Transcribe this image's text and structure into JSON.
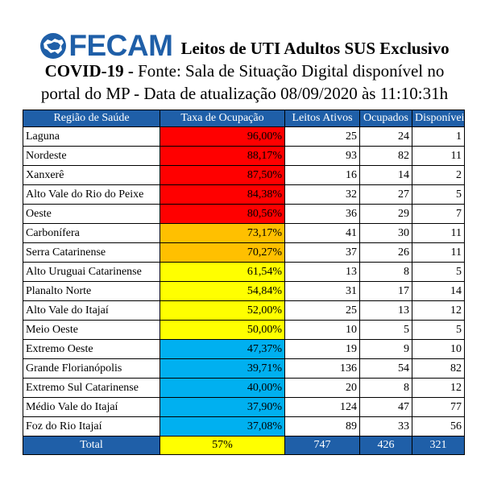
{
  "header": {
    "logo_text": "FECAM",
    "title_line1": "Leitos de UTI Adultos SUS Exclusivo",
    "title_line2_bold": "COVID-19 -",
    "title_line2_rest": " Fonte: Sala de Situação Digital disponível no",
    "title_line3": "portal do MP - Data de atualização 08/09/2020 às 11:10:31h"
  },
  "table": {
    "columns": [
      "Região de Saúde",
      "Taxa de Ocupação",
      "Leitos Ativos",
      "Ocupados",
      "Disponíveis"
    ],
    "rows": [
      {
        "regiao": "Laguna",
        "taxa": "96,00%",
        "ativos": "25",
        "ocupados": "24",
        "disponiveis": "1",
        "color": "#ff0000"
      },
      {
        "regiao": "Nordeste",
        "taxa": "88,17%",
        "ativos": "93",
        "ocupados": "82",
        "disponiveis": "11",
        "color": "#ff0000"
      },
      {
        "regiao": "Xanxerê",
        "taxa": "87,50%",
        "ativos": "16",
        "ocupados": "14",
        "disponiveis": "2",
        "color": "#ff0000"
      },
      {
        "regiao": "Alto Vale do Rio do Peixe",
        "taxa": "84,38%",
        "ativos": "32",
        "ocupados": "27",
        "disponiveis": "5",
        "color": "#ff0000"
      },
      {
        "regiao": "Oeste",
        "taxa": "80,56%",
        "ativos": "36",
        "ocupados": "29",
        "disponiveis": "7",
        "color": "#ff0000"
      },
      {
        "regiao": "Carbonífera",
        "taxa": "73,17%",
        "ativos": "41",
        "ocupados": "30",
        "disponiveis": "11",
        "color": "#ffc000"
      },
      {
        "regiao": "Serra Catarinense",
        "taxa": "70,27%",
        "ativos": "37",
        "ocupados": "26",
        "disponiveis": "11",
        "color": "#ffc000"
      },
      {
        "regiao": "Alto Uruguai Catarinense",
        "taxa": "61,54%",
        "ativos": "13",
        "ocupados": "8",
        "disponiveis": "5",
        "color": "#ffff00"
      },
      {
        "regiao": "Planalto Norte",
        "taxa": "54,84%",
        "ativos": "31",
        "ocupados": "17",
        "disponiveis": "14",
        "color": "#ffff00"
      },
      {
        "regiao": "Alto Vale do Itajaí",
        "taxa": "52,00%",
        "ativos": "25",
        "ocupados": "13",
        "disponiveis": "12",
        "color": "#ffff00"
      },
      {
        "regiao": "Meio Oeste",
        "taxa": "50,00%",
        "ativos": "10",
        "ocupados": "5",
        "disponiveis": "5",
        "color": "#ffff00"
      },
      {
        "regiao": "Extremo Oeste",
        "taxa": "47,37%",
        "ativos": "19",
        "ocupados": "9",
        "disponiveis": "10",
        "color": "#00b0f0"
      },
      {
        "regiao": "Grande Florianópolis",
        "taxa": "39,71%",
        "ativos": "136",
        "ocupados": "54",
        "disponiveis": "82",
        "color": "#00b0f0"
      },
      {
        "regiao": "Extremo Sul Catarinense",
        "taxa": "40,00%",
        "ativos": "20",
        "ocupados": "8",
        "disponiveis": "12",
        "color": "#00b0f0"
      },
      {
        "regiao": "Médio Vale do Itajaí",
        "taxa": "37,90%",
        "ativos": "124",
        "ocupados": "47",
        "disponiveis": "77",
        "color": "#00b0f0"
      },
      {
        "regiao": "Foz do Rio Itajaí",
        "taxa": "37,08%",
        "ativos": "89",
        "ocupados": "33",
        "disponiveis": "56",
        "color": "#00b0f0"
      }
    ],
    "total": {
      "label": "Total",
      "taxa": "57%",
      "ativos": "747",
      "ocupados": "426",
      "disponiveis": "321",
      "color": "#ffff00"
    }
  },
  "colors": {
    "header_blue": "#1f5fa8"
  },
  "icons": {
    "logo": "santa-catarina-map-icon"
  }
}
